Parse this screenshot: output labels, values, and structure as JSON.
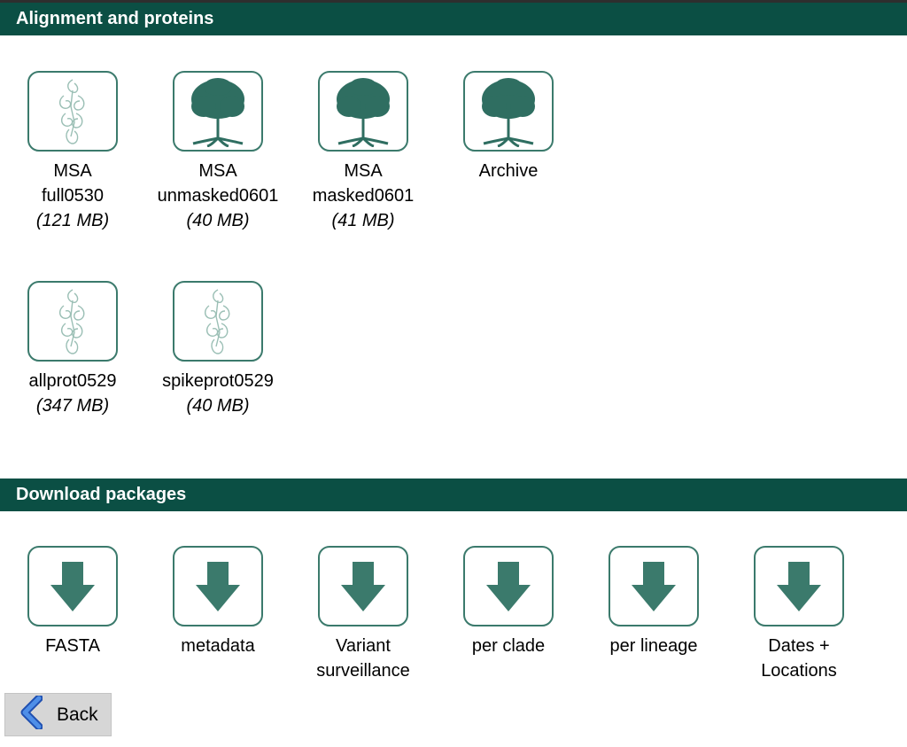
{
  "sections": {
    "alignment": {
      "title": "Alignment and proteins"
    },
    "downloads": {
      "title": "Download packages"
    }
  },
  "alignment_items": [
    {
      "line1": "MSA",
      "line2": "full0530",
      "size": "(121 MB)",
      "icon": "protein-structure-icon"
    },
    {
      "line1": "MSA",
      "line2": "unmasked0601",
      "size": "(40 MB)",
      "icon": "tree-icon"
    },
    {
      "line1": "MSA",
      "line2": "masked0601",
      "size": "(41 MB)",
      "icon": "tree-icon"
    },
    {
      "line1": "Archive",
      "icon": "tree-icon"
    },
    {
      "line1": "allprot0529",
      "size": "(347 MB)",
      "icon": "protein-structure-icon"
    },
    {
      "line1": "spikeprot0529",
      "size": "(40 MB)",
      "icon": "protein-structure-icon"
    }
  ],
  "download_items": [
    {
      "line1": "FASTA",
      "icon": "download-arrow-icon"
    },
    {
      "line1": "metadata",
      "icon": "download-arrow-icon"
    },
    {
      "line1": "Variant",
      "line2": "surveillance",
      "icon": "download-arrow-icon"
    },
    {
      "line1": "per clade",
      "icon": "download-arrow-icon"
    },
    {
      "line1": "per lineage",
      "icon": "download-arrow-icon"
    },
    {
      "line1": "Dates +",
      "line2": "Locations",
      "icon": "download-arrow-icon"
    }
  ],
  "back": {
    "label": "Back",
    "icon": "back-chevron-icon"
  },
  "colors": {
    "header_bg": "#0b4f44",
    "icon_green": "#3b7a6c",
    "back_blue": "#2f6fd8"
  }
}
